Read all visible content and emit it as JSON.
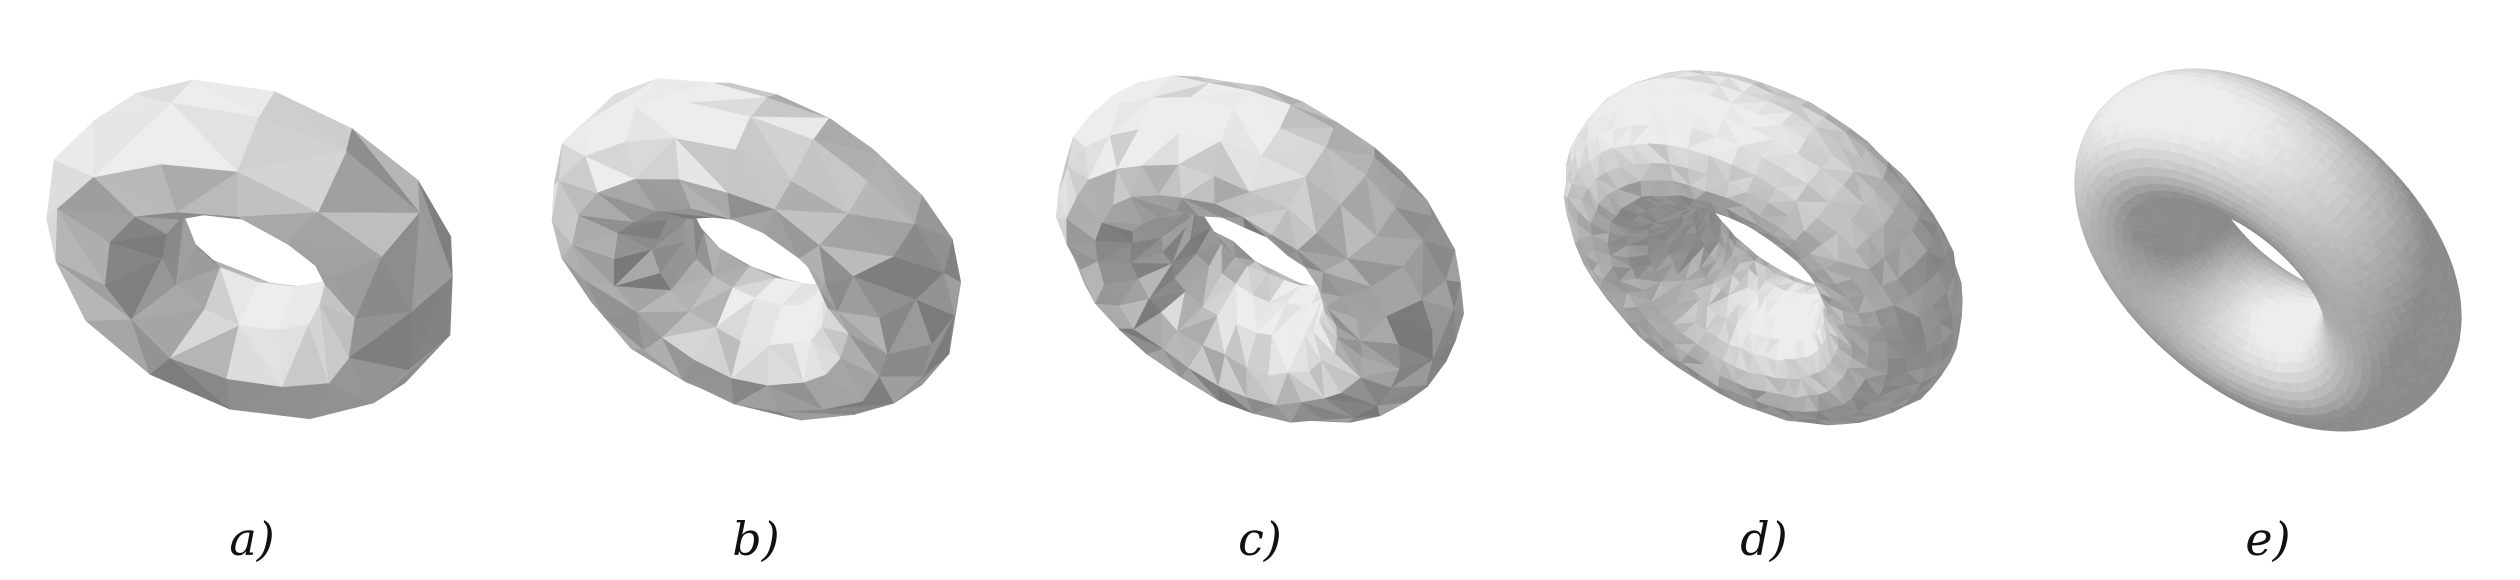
{
  "panels": [
    {
      "label": "a)",
      "mesh_resolution": "very-coarse"
    },
    {
      "label": "b)",
      "mesh_resolution": "coarse"
    },
    {
      "label": "c)",
      "mesh_resolution": "medium"
    },
    {
      "label": "d)",
      "mesh_resolution": "fine"
    },
    {
      "label": "e)",
      "mesh_resolution": "very-fine"
    }
  ],
  "colors": {
    "surface_light": "#e6e6e6",
    "surface_mid": "#c8c8c8",
    "surface_dark": "#8e8e8e",
    "rim": "#9a9a9a"
  }
}
